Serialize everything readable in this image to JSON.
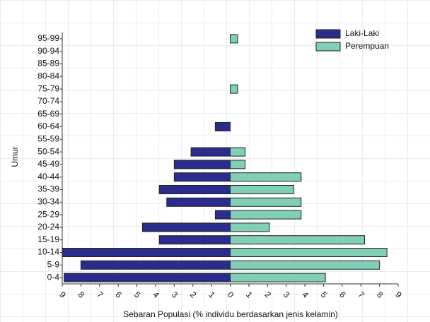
{
  "chart_data": {
    "type": "pyramid",
    "y_label": "Umur",
    "x_label": "Sebaran Populasi (% individu berdasarkan jenis kelamin)",
    "categories": [
      "0-4",
      "5-9",
      "10-14",
      "15-19",
      "20-24",
      "25-29",
      "30-34",
      "35-39",
      "40-44",
      "45-49",
      "50-54",
      "55-59",
      "60-64",
      "65-69",
      "70-74",
      "75-79",
      "80-84",
      "85-89",
      "90-94",
      "95-99"
    ],
    "series": [
      {
        "name": "Laki-Laki",
        "color": "#2a2d8c",
        "values": [
          -8.9,
          -8.0,
          -9.0,
          -3.8,
          -4.7,
          -0.8,
          -3.4,
          -3.8,
          -3.0,
          -3.0,
          -2.1,
          0,
          -0.8,
          0,
          0,
          0,
          0,
          0,
          0,
          0
        ]
      },
      {
        "name": "Perempuan",
        "color": "#80cfb6",
        "values": [
          5.1,
          8.0,
          8.4,
          7.2,
          2.1,
          3.8,
          3.8,
          3.4,
          3.8,
          0.8,
          0.8,
          0,
          0,
          0,
          0,
          0.4,
          0,
          0,
          0,
          0.4
        ]
      }
    ],
    "xlim": [
      -9,
      9
    ],
    "xticks": [
      {
        "value": -9,
        "label": "9"
      },
      {
        "value": -8,
        "label": "8"
      },
      {
        "value": -7,
        "label": "7"
      },
      {
        "value": -6,
        "label": "6"
      },
      {
        "value": -5,
        "label": "5"
      },
      {
        "value": -4,
        "label": "4"
      },
      {
        "value": -3,
        "label": "3"
      },
      {
        "value": -2,
        "label": "2"
      },
      {
        "value": -1,
        "label": "1"
      },
      0,
      1,
      2,
      3,
      4,
      5,
      6,
      7,
      8,
      9
    ],
    "legend": "upper right"
  }
}
